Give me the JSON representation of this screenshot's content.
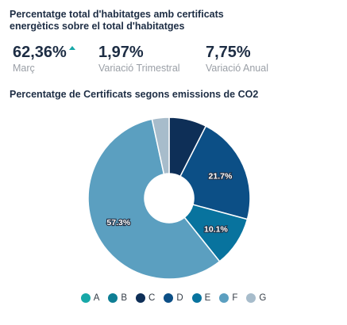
{
  "header": {
    "title": "Percentatge total d'habitatges amb certificats energètics sobre el total d'habitatges"
  },
  "kpis": [
    {
      "value": "62,36%",
      "label": "Març",
      "trend": "up",
      "trend_icon": "arrow-up-icon",
      "trend_color": "#17a8a8"
    },
    {
      "value": "1,97%",
      "label": "Variació Trimestral"
    },
    {
      "value": "7,75%",
      "label": "Variació Anual"
    }
  ],
  "chart_data": {
    "type": "pie",
    "variant": "donut",
    "title": "Percentatge de Certificats segons emissions de CO2",
    "categories": [
      "A",
      "B",
      "C",
      "D",
      "E",
      "F",
      "G"
    ],
    "values": [
      0.0,
      0.0,
      7.5,
      21.7,
      10.1,
      57.3,
      3.4
    ],
    "value_labels": [
      "",
      "",
      "",
      "21.7%",
      "10.1%",
      "57.3%",
      ""
    ],
    "colors": [
      "#17a8a8",
      "#0e7e94",
      "#0e2f57",
      "#0c4f86",
      "#08739e",
      "#5b9fc0",
      "#a7bccb"
    ],
    "legend": "bottom-center",
    "start_angle_deg": 0,
    "direction": "clockwise"
  }
}
